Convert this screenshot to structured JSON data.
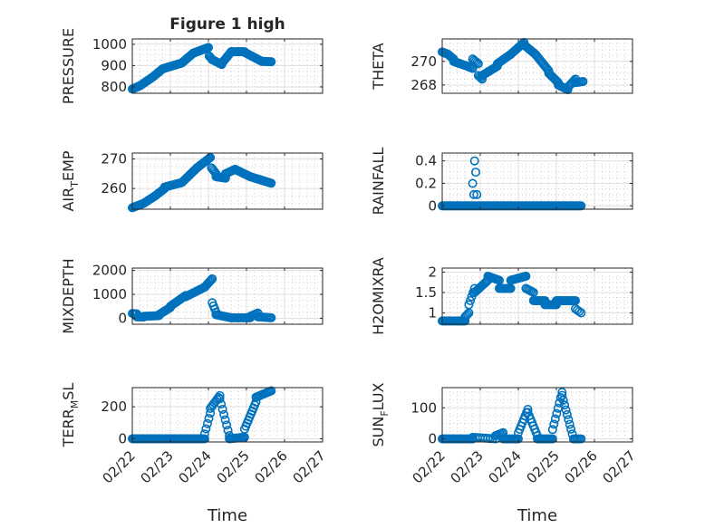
{
  "figure_title": "Figure 1 high",
  "marker_color": "#0072bd",
  "x_ticks": [
    "02/22",
    "02/23",
    "02/24",
    "02/25",
    "02/26",
    "02/27"
  ],
  "x_label": "Time",
  "chart_data": [
    {
      "type": "scatter",
      "name": "pressure",
      "title": "Figure 1 high",
      "ylabel_main": "PRESSURE",
      "ylabel_sub": "",
      "ylabel_tail": "",
      "xlim": [
        0,
        5
      ],
      "ylim": [
        770,
        1025
      ],
      "yticks": [
        800,
        900,
        1000
      ],
      "ytick_labels": [
        "800",
        "900",
        "1000"
      ],
      "series": [
        {
          "x0": 0.0,
          "x1": 0.2,
          "y0": 790,
          "y1": 805,
          "n": 12
        },
        {
          "x0": 0.2,
          "x1": 0.55,
          "y0": 805,
          "y1": 848,
          "n": 18
        },
        {
          "x0": 0.55,
          "x1": 0.8,
          "y0": 848,
          "y1": 885,
          "n": 13
        },
        {
          "x0": 0.8,
          "x1": 1.3,
          "y0": 885,
          "y1": 912,
          "n": 22
        },
        {
          "x0": 1.3,
          "x1": 1.6,
          "y0": 912,
          "y1": 958,
          "n": 14
        },
        {
          "x0": 1.6,
          "x1": 2.0,
          "y0": 958,
          "y1": 985,
          "n": 20
        },
        {
          "x0": 2.02,
          "x1": 2.1,
          "y0": 945,
          "y1": 928,
          "n": 4
        },
        {
          "x0": 2.1,
          "x1": 2.35,
          "y0": 928,
          "y1": 905,
          "n": 8
        },
        {
          "x0": 2.35,
          "x1": 2.6,
          "y0": 910,
          "y1": 965,
          "n": 10
        },
        {
          "x0": 2.6,
          "x1": 2.95,
          "y0": 965,
          "y1": 965,
          "n": 14
        },
        {
          "x0": 2.95,
          "x1": 3.4,
          "y0": 962,
          "y1": 920,
          "n": 16
        },
        {
          "x0": 3.4,
          "x1": 3.65,
          "y0": 920,
          "y1": 918,
          "n": 8
        }
      ]
    },
    {
      "type": "scatter",
      "name": "theta",
      "title": "",
      "ylabel_main": "THETA",
      "ylabel_sub": "",
      "ylabel_tail": "",
      "xlim": [
        0,
        5
      ],
      "ylim": [
        267.3,
        271.9
      ],
      "yticks": [
        268,
        270
      ],
      "ytick_labels": [
        "268",
        "270"
      ],
      "series": [
        {
          "x0": 0.0,
          "x1": 0.15,
          "y0": 270.8,
          "y1": 270.6,
          "n": 6
        },
        {
          "x0": 0.15,
          "x1": 0.3,
          "y0": 270.6,
          "y1": 270.2,
          "n": 6
        },
        {
          "x0": 0.3,
          "x1": 0.65,
          "y0": 270.0,
          "y1": 269.6,
          "n": 12
        },
        {
          "x0": 0.65,
          "x1": 0.8,
          "y0": 269.6,
          "y1": 269.4,
          "n": 5
        },
        {
          "x0": 0.8,
          "x1": 0.95,
          "y0": 270.2,
          "y1": 269.8,
          "n": 5
        },
        {
          "x0": 0.95,
          "x1": 1.05,
          "y0": 268.8,
          "y1": 268.5,
          "n": 4
        },
        {
          "x0": 1.05,
          "x1": 1.45,
          "y0": 268.8,
          "y1": 269.6,
          "n": 14
        },
        {
          "x0": 1.45,
          "x1": 1.8,
          "y0": 269.8,
          "y1": 270.6,
          "n": 12
        },
        {
          "x0": 1.8,
          "x1": 2.15,
          "y0": 270.6,
          "y1": 271.6,
          "n": 12
        },
        {
          "x0": 2.15,
          "x1": 2.45,
          "y0": 271.4,
          "y1": 270.6,
          "n": 10
        },
        {
          "x0": 2.45,
          "x1": 2.8,
          "y0": 270.6,
          "y1": 269.2,
          "n": 12
        },
        {
          "x0": 2.8,
          "x1": 3.05,
          "y0": 269.0,
          "y1": 268.2,
          "n": 9
        },
        {
          "x0": 3.05,
          "x1": 3.3,
          "y0": 268.0,
          "y1": 267.6,
          "n": 8
        },
        {
          "x0": 3.3,
          "x1": 3.5,
          "y0": 267.8,
          "y1": 268.5,
          "n": 7
        },
        {
          "x0": 3.5,
          "x1": 3.7,
          "y0": 268.2,
          "y1": 268.3,
          "n": 6
        }
      ]
    },
    {
      "type": "scatter",
      "name": "air-temp",
      "title": "",
      "ylabel_main": "AIR",
      "ylabel_sub": "T",
      "ylabel_tail": "EMP",
      "xlim": [
        0,
        5
      ],
      "ylim": [
        253,
        272
      ],
      "yticks": [
        260,
        270
      ],
      "ytick_labels": [
        "260",
        "270"
      ],
      "series": [
        {
          "x0": 0.0,
          "x1": 0.3,
          "y0": 253.5,
          "y1": 255.0,
          "n": 12
        },
        {
          "x0": 0.3,
          "x1": 0.6,
          "y0": 255.0,
          "y1": 257.5,
          "n": 12
        },
        {
          "x0": 0.6,
          "x1": 0.85,
          "y0": 257.5,
          "y1": 260.0,
          "n": 10
        },
        {
          "x0": 0.85,
          "x1": 1.3,
          "y0": 260.5,
          "y1": 262.0,
          "n": 16
        },
        {
          "x0": 1.3,
          "x1": 1.7,
          "y0": 262.0,
          "y1": 267.0,
          "n": 14
        },
        {
          "x0": 1.7,
          "x1": 2.05,
          "y0": 267.0,
          "y1": 270.5,
          "n": 14
        },
        {
          "x0": 2.08,
          "x1": 2.2,
          "y0": 267.0,
          "y1": 265.0,
          "n": 5
        },
        {
          "x0": 2.2,
          "x1": 2.45,
          "y0": 264.0,
          "y1": 263.5,
          "n": 8
        },
        {
          "x0": 2.45,
          "x1": 2.7,
          "y0": 265.0,
          "y1": 266.5,
          "n": 8
        },
        {
          "x0": 2.7,
          "x1": 3.1,
          "y0": 266.5,
          "y1": 264.0,
          "n": 14
        },
        {
          "x0": 3.1,
          "x1": 3.65,
          "y0": 264.0,
          "y1": 261.8,
          "n": 18
        }
      ]
    },
    {
      "type": "scatter",
      "name": "rainfall",
      "title": "",
      "ylabel_main": "RAINFALL",
      "ylabel_sub": "",
      "ylabel_tail": "",
      "xlim": [
        0,
        5
      ],
      "ylim": [
        -0.03,
        0.47
      ],
      "yticks": [
        0,
        0.2,
        0.4
      ],
      "ytick_labels": [
        "0",
        "0.2",
        "0.4"
      ],
      "series": [
        {
          "x0": 0.0,
          "x1": 3.65,
          "y0": 0,
          "y1": 0,
          "n": 120
        },
        {
          "x0": 0.8,
          "x1": 0.8,
          "y0": 0.2,
          "y1": 0.2,
          "n": 1
        },
        {
          "x0": 0.85,
          "x1": 0.85,
          "y0": 0.4,
          "y1": 0.4,
          "n": 1
        },
        {
          "x0": 0.88,
          "x1": 0.88,
          "y0": 0.3,
          "y1": 0.3,
          "n": 1
        },
        {
          "x0": 0.83,
          "x1": 0.83,
          "y0": 0.1,
          "y1": 0.1,
          "n": 1
        },
        {
          "x0": 0.91,
          "x1": 0.91,
          "y0": 0.1,
          "y1": 0.1,
          "n": 1
        }
      ]
    },
    {
      "type": "scatter",
      "name": "mixdepth",
      "title": "",
      "ylabel_main": "MIXDEPTH",
      "ylabel_sub": "",
      "ylabel_tail": "",
      "xlim": [
        0,
        5
      ],
      "ylim": [
        -250,
        2100
      ],
      "yticks": [
        0,
        1000,
        2000
      ],
      "ytick_labels": [
        "0",
        "1000",
        "2000"
      ],
      "series": [
        {
          "x0": 0.0,
          "x1": 0.12,
          "y0": 200,
          "y1": 180,
          "n": 6
        },
        {
          "x0": 0.12,
          "x1": 0.3,
          "y0": 60,
          "y1": 50,
          "n": 6
        },
        {
          "x0": 0.3,
          "x1": 0.7,
          "y0": 80,
          "y1": 110,
          "n": 12
        },
        {
          "x0": 0.7,
          "x1": 1.0,
          "y0": 150,
          "y1": 450,
          "n": 10
        },
        {
          "x0": 1.0,
          "x1": 1.4,
          "y0": 500,
          "y1": 950,
          "n": 14
        },
        {
          "x0": 1.4,
          "x1": 1.9,
          "y0": 900,
          "y1": 1300,
          "n": 16
        },
        {
          "x0": 1.9,
          "x1": 2.1,
          "y0": 1300,
          "y1": 1650,
          "n": 8
        },
        {
          "x0": 2.1,
          "x1": 2.2,
          "y0": 650,
          "y1": 250,
          "n": 4
        },
        {
          "x0": 2.2,
          "x1": 2.6,
          "y0": 150,
          "y1": 20,
          "n": 12
        },
        {
          "x0": 2.6,
          "x1": 3.1,
          "y0": 20,
          "y1": 20,
          "n": 14
        },
        {
          "x0": 3.1,
          "x1": 3.3,
          "y0": 80,
          "y1": 220,
          "n": 6
        },
        {
          "x0": 3.3,
          "x1": 3.65,
          "y0": 60,
          "y1": 20,
          "n": 10
        }
      ]
    },
    {
      "type": "scatter",
      "name": "h2omixra",
      "title": "",
      "ylabel_main": "H2OMIXRA",
      "ylabel_sub": "",
      "ylabel_tail": "",
      "xlim": [
        0,
        5
      ],
      "ylim": [
        0.72,
        2.1
      ],
      "yticks": [
        1,
        1.5,
        2
      ],
      "ytick_labels": [
        "1",
        "1.5",
        "2"
      ],
      "series": [
        {
          "x0": 0.0,
          "x1": 0.6,
          "y0": 0.8,
          "y1": 0.8,
          "n": 18
        },
        {
          "x0": 0.6,
          "x1": 0.7,
          "y0": 0.9,
          "y1": 1.0,
          "n": 4
        },
        {
          "x0": 0.7,
          "x1": 0.85,
          "y0": 1.2,
          "y1": 1.6,
          "n": 5
        },
        {
          "x0": 0.85,
          "x1": 1.2,
          "y0": 1.5,
          "y1": 1.8,
          "n": 12
        },
        {
          "x0": 1.2,
          "x1": 1.5,
          "y0": 1.9,
          "y1": 1.8,
          "n": 10
        },
        {
          "x0": 1.5,
          "x1": 1.8,
          "y0": 1.6,
          "y1": 1.6,
          "n": 10
        },
        {
          "x0": 1.8,
          "x1": 2.2,
          "y0": 1.8,
          "y1": 1.9,
          "n": 14
        },
        {
          "x0": 2.2,
          "x1": 2.4,
          "y0": 1.6,
          "y1": 1.5,
          "n": 6
        },
        {
          "x0": 2.4,
          "x1": 2.7,
          "y0": 1.3,
          "y1": 1.3,
          "n": 10
        },
        {
          "x0": 2.7,
          "x1": 3.0,
          "y0": 1.2,
          "y1": 1.2,
          "n": 10
        },
        {
          "x0": 3.0,
          "x1": 3.5,
          "y0": 1.3,
          "y1": 1.3,
          "n": 16
        },
        {
          "x0": 3.5,
          "x1": 3.65,
          "y0": 1.1,
          "y1": 1.0,
          "n": 4
        }
      ]
    },
    {
      "type": "scatter",
      "name": "terr-msl",
      "title": "",
      "ylabel_main": "TERR",
      "ylabel_sub": "M",
      "ylabel_tail": "SL",
      "xlim": [
        0,
        5
      ],
      "ylim": [
        -20,
        320
      ],
      "yticks": [
        0,
        200
      ],
      "ytick_labels": [
        "0",
        "200"
      ],
      "series": [
        {
          "x0": 0.0,
          "x1": 1.9,
          "y0": 0,
          "y1": 0,
          "n": 60
        },
        {
          "x0": 1.9,
          "x1": 2.05,
          "y0": 30,
          "y1": 160,
          "n": 5
        },
        {
          "x0": 2.05,
          "x1": 2.3,
          "y0": 190,
          "y1": 270,
          "n": 8
        },
        {
          "x0": 2.3,
          "x1": 2.55,
          "y0": 250,
          "y1": 20,
          "n": 8
        },
        {
          "x0": 2.55,
          "x1": 2.95,
          "y0": 0,
          "y1": 10,
          "n": 12
        },
        {
          "x0": 2.95,
          "x1": 3.25,
          "y0": 60,
          "y1": 230,
          "n": 10
        },
        {
          "x0": 3.25,
          "x1": 3.65,
          "y0": 260,
          "y1": 300,
          "n": 12
        }
      ]
    },
    {
      "type": "scatter",
      "name": "sun-flux",
      "title": "",
      "ylabel_main": "SUN",
      "ylabel_sub": "F",
      "ylabel_tail": "LUX",
      "xlim": [
        0,
        5
      ],
      "ylim": [
        -10,
        165
      ],
      "yticks": [
        0,
        100
      ],
      "ytick_labels": [
        "0",
        "100"
      ],
      "series": [
        {
          "x0": 0.0,
          "x1": 0.8,
          "y0": 0,
          "y1": 0,
          "n": 25
        },
        {
          "x0": 0.8,
          "x1": 1.4,
          "y0": 5,
          "y1": 0,
          "n": 10
        },
        {
          "x0": 1.4,
          "x1": 1.6,
          "y0": 10,
          "y1": 20,
          "n": 6
        },
        {
          "x0": 1.6,
          "x1": 2.0,
          "y0": 0,
          "y1": 0,
          "n": 12
        },
        {
          "x0": 2.0,
          "x1": 2.25,
          "y0": 20,
          "y1": 95,
          "n": 8
        },
        {
          "x0": 2.25,
          "x1": 2.5,
          "y0": 85,
          "y1": 10,
          "n": 8
        },
        {
          "x0": 2.5,
          "x1": 2.9,
          "y0": 0,
          "y1": 0,
          "n": 12
        },
        {
          "x0": 2.9,
          "x1": 3.15,
          "y0": 30,
          "y1": 150,
          "n": 8
        },
        {
          "x0": 3.15,
          "x1": 3.45,
          "y0": 140,
          "y1": 0,
          "n": 10
        },
        {
          "x0": 3.45,
          "x1": 3.65,
          "y0": 0,
          "y1": 0,
          "n": 6
        }
      ]
    }
  ]
}
